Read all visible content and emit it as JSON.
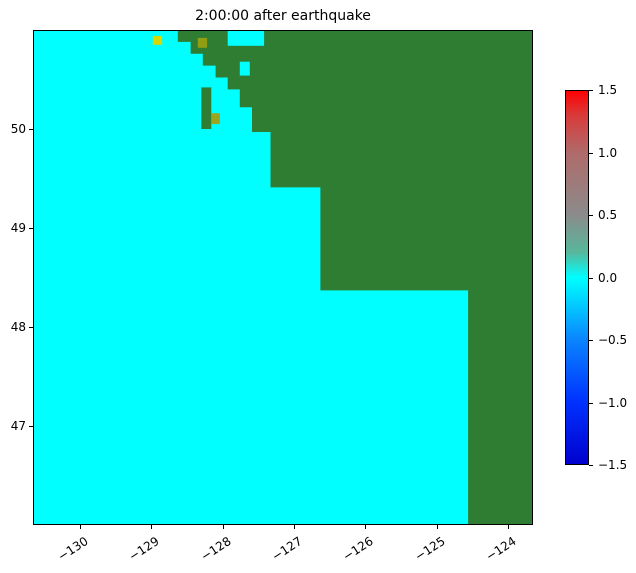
{
  "chart_data": {
    "type": "heatmap",
    "title": "2:00:00 after earthquake",
    "xlabel": "",
    "ylabel": "",
    "xlim": [
      -130.66,
      -123.65
    ],
    "ylim": [
      46.0,
      51.0
    ],
    "xticks": [
      {
        "value": -130,
        "label": "−130"
      },
      {
        "value": -129,
        "label": "−129"
      },
      {
        "value": -128,
        "label": "−128"
      },
      {
        "value": -127,
        "label": "−127"
      },
      {
        "value": -126,
        "label": "−126"
      },
      {
        "value": -125,
        "label": "−125"
      },
      {
        "value": -124,
        "label": "−124"
      }
    ],
    "yticks": [
      {
        "value": 50,
        "label": "50"
      },
      {
        "value": 49,
        "label": "49"
      },
      {
        "value": 48,
        "label": "48"
      },
      {
        "value": 47,
        "label": "47"
      }
    ],
    "ocean_value": 0.0,
    "ocean_color": "#00ffff",
    "land_color": "#2e7d32",
    "land_polygon": [
      [
        -123.65,
        51.0
      ],
      [
        -128.63,
        51.0
      ],
      [
        -128.63,
        50.88
      ],
      [
        -128.45,
        50.88
      ],
      [
        -128.45,
        50.76
      ],
      [
        -128.28,
        50.76
      ],
      [
        -128.28,
        50.64
      ],
      [
        -128.1,
        50.64
      ],
      [
        -128.1,
        50.52
      ],
      [
        -127.93,
        50.52
      ],
      [
        -127.93,
        50.4
      ],
      [
        -127.76,
        50.4
      ],
      [
        -127.76,
        50.22
      ],
      [
        -127.59,
        50.22
      ],
      [
        -127.59,
        49.97
      ],
      [
        -127.33,
        49.97
      ],
      [
        -127.33,
        49.41
      ],
      [
        -126.63,
        49.41
      ],
      [
        -126.63,
        48.37
      ],
      [
        -124.56,
        48.37
      ],
      [
        -124.56,
        46.0
      ],
      [
        -123.65,
        46.0
      ]
    ],
    "islands": [
      {
        "lon0": -128.3,
        "lon1": -128.16,
        "lat0": 50.0,
        "lat1": 50.42
      }
    ],
    "inlets": [
      {
        "lon0": -127.93,
        "lon1": -127.42,
        "lat0": 50.84,
        "lat1": 51.0
      },
      {
        "lon0": -127.76,
        "lon1": -127.62,
        "lat0": 50.54,
        "lat1": 50.68
      }
    ],
    "hotspots": [
      {
        "lon0": -128.98,
        "lon1": -128.85,
        "lat0": 50.85,
        "lat1": 50.94,
        "color": "#d8d800"
      },
      {
        "lon0": -128.35,
        "lon1": -128.22,
        "lat0": 50.82,
        "lat1": 50.92,
        "color": "#8f9e13"
      },
      {
        "lon0": -128.16,
        "lon1": -128.04,
        "lat0": 50.05,
        "lat1": 50.16,
        "color": "#9aa520"
      }
    ],
    "colorbar": {
      "min": -1.5,
      "max": 1.5,
      "ticks": [
        {
          "value": 1.5,
          "label": "1.5"
        },
        {
          "value": 1.0,
          "label": "1.0"
        },
        {
          "value": 0.5,
          "label": "0.5"
        },
        {
          "value": 0.0,
          "label": "0.0"
        },
        {
          "value": -0.5,
          "label": "−0.5"
        },
        {
          "value": -1.0,
          "label": "−1.0"
        },
        {
          "value": -1.5,
          "label": "−1.5"
        }
      ],
      "colormap_stops": [
        {
          "value": -1.5,
          "color": "#0000cd"
        },
        {
          "value": -1.0,
          "color": "#0031ff"
        },
        {
          "value": -0.5,
          "color": "#0a84ff"
        },
        {
          "value": -0.1,
          "color": "#00e8ff"
        },
        {
          "value": 0.0,
          "color": "#00ffff"
        },
        {
          "value": 0.2,
          "color": "#57b79b"
        },
        {
          "value": 0.5,
          "color": "#8b8b8b"
        },
        {
          "value": 1.0,
          "color": "#b06a6a"
        },
        {
          "value": 1.3,
          "color": "#d93a3a"
        },
        {
          "value": 1.5,
          "color": "#ff0000"
        }
      ]
    }
  }
}
